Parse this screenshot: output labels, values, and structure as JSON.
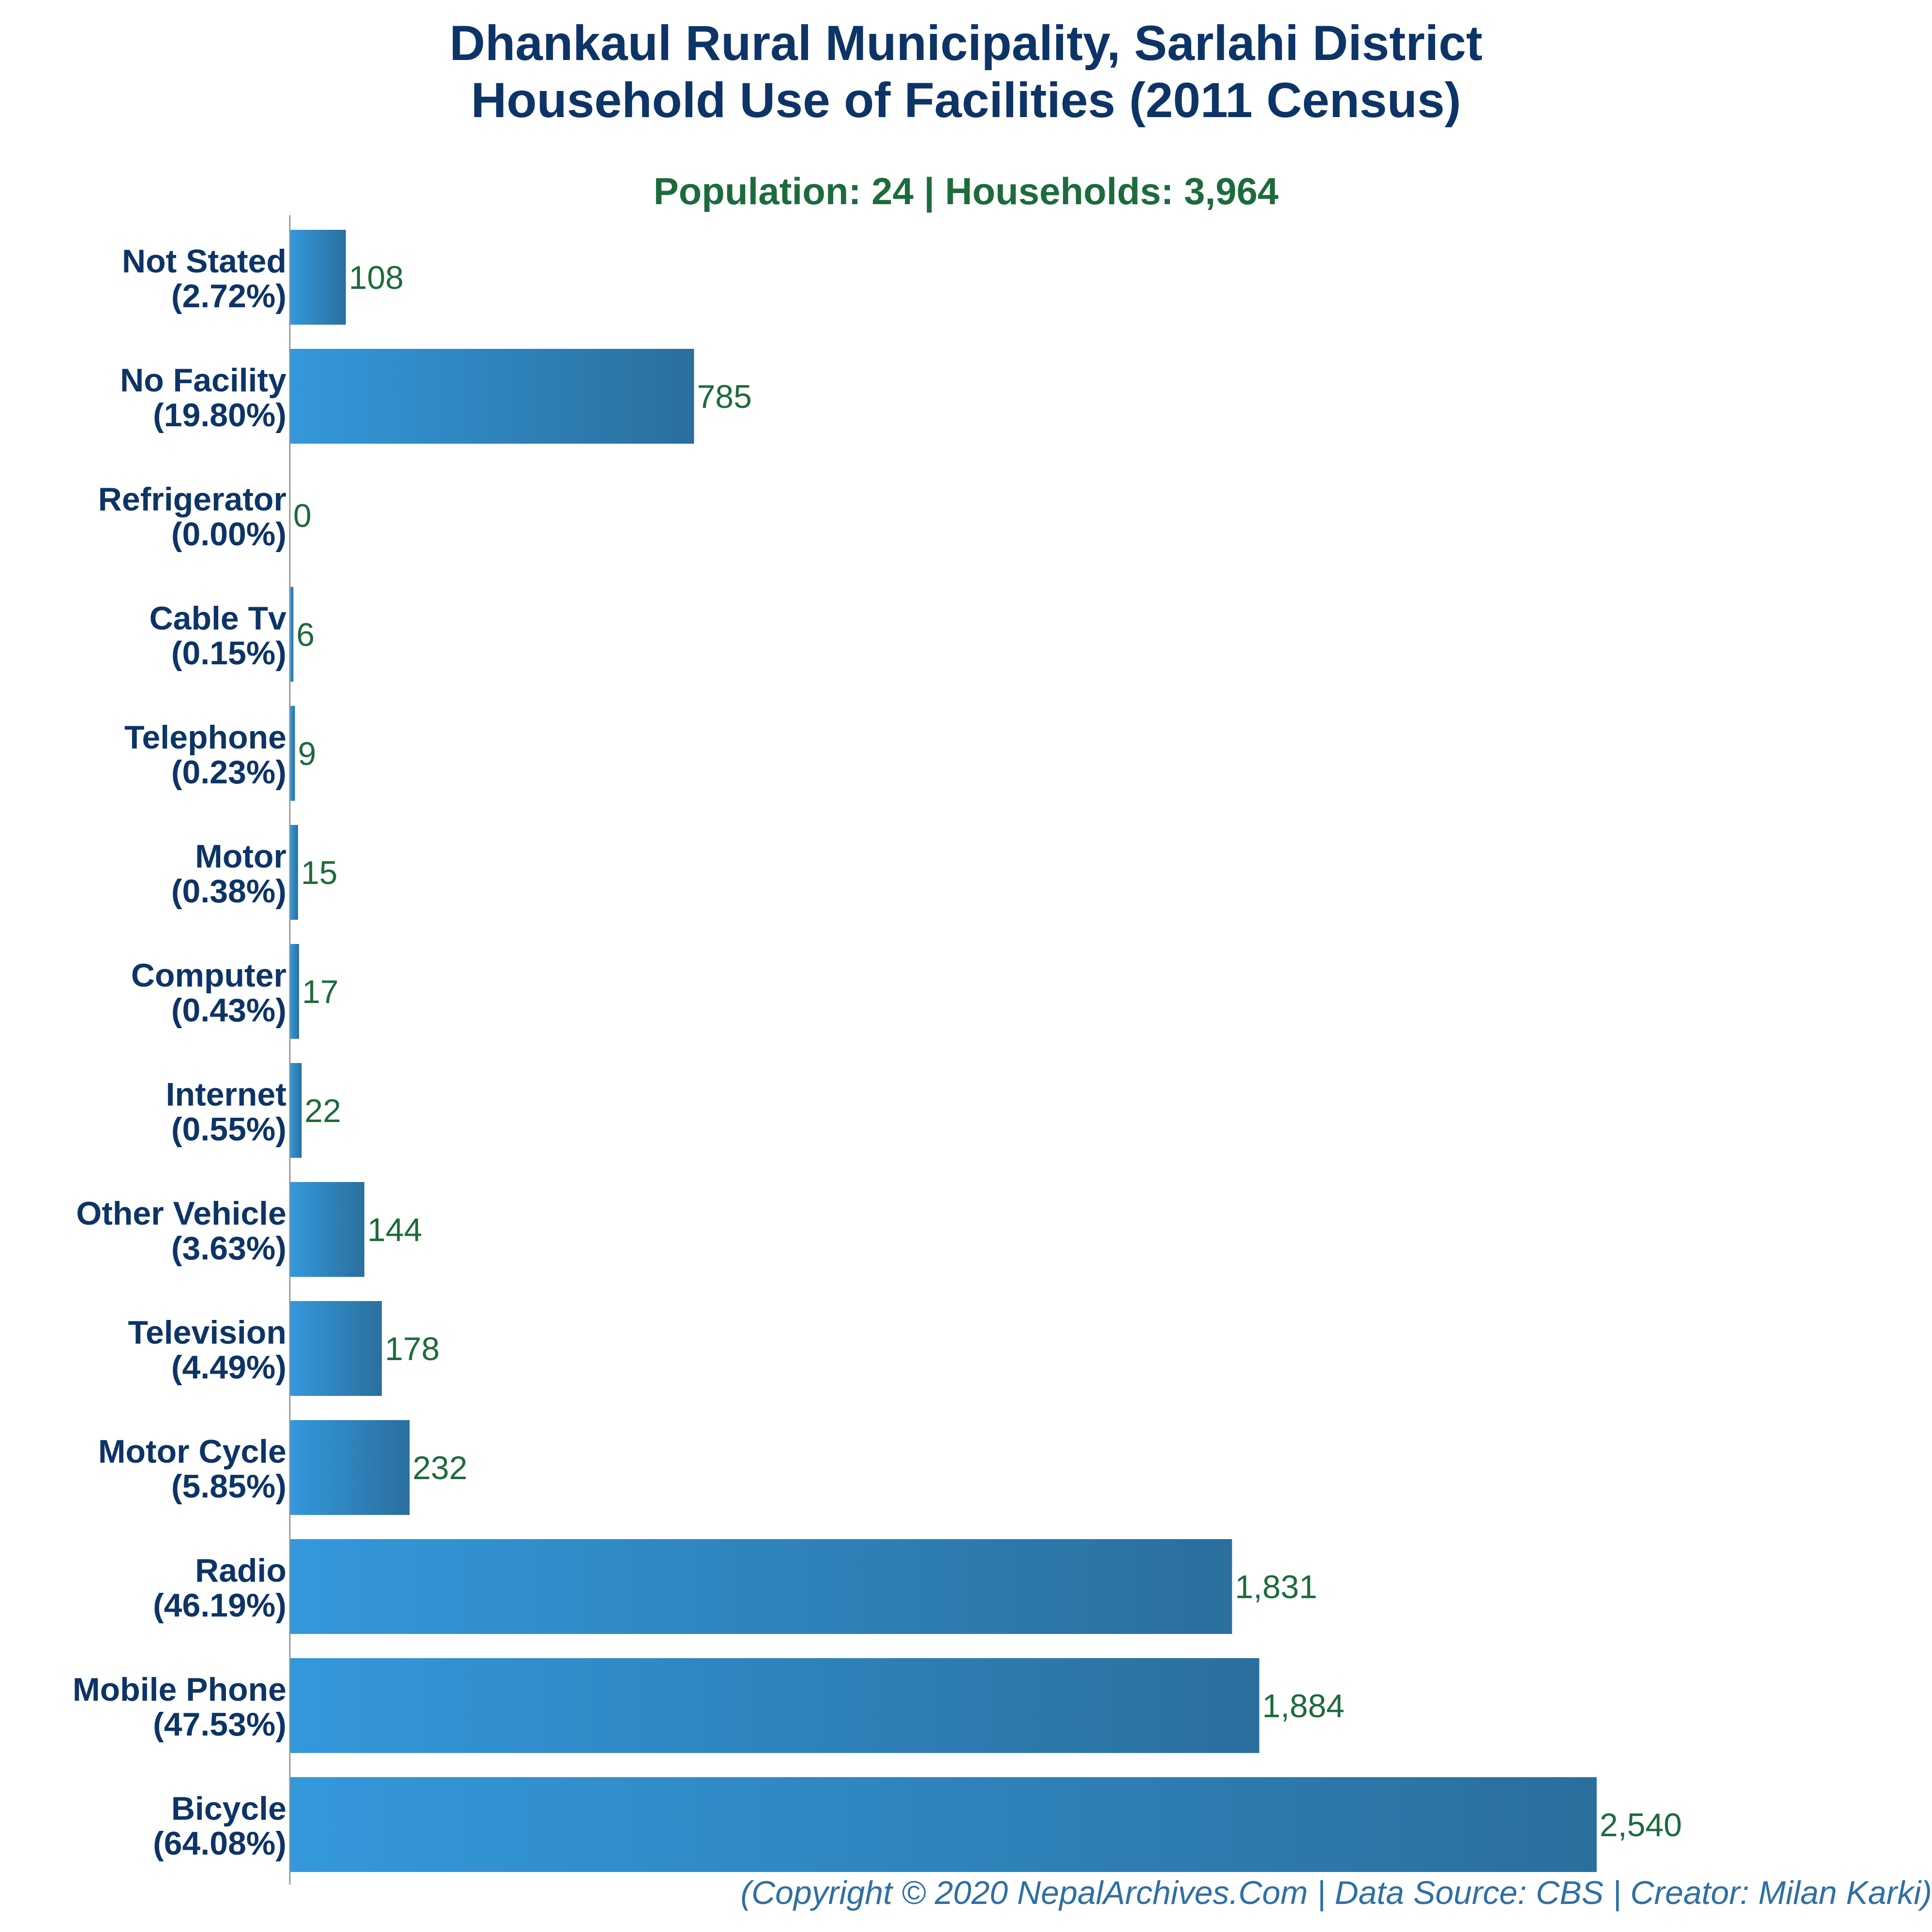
{
  "chart_data": {
    "type": "bar",
    "orientation": "horizontal",
    "title": [
      "Dhankaul Rural Municipality, Sarlahi District",
      "Household Use of Facilities (2011 Census)"
    ],
    "subtitle": "Population: 24 | Households: 3,964",
    "categories": [
      {
        "name": "Not Stated",
        "pct": "(2.72%)",
        "value": 108,
        "value_label": "108"
      },
      {
        "name": "No Facility",
        "pct": "(19.80%)",
        "value": 785,
        "value_label": "785"
      },
      {
        "name": "Refrigerator",
        "pct": "(0.00%)",
        "value": 0,
        "value_label": "0"
      },
      {
        "name": "Cable Tv",
        "pct": "(0.15%)",
        "value": 6,
        "value_label": "6"
      },
      {
        "name": "Telephone",
        "pct": "(0.23%)",
        "value": 9,
        "value_label": "9"
      },
      {
        "name": "Motor",
        "pct": "(0.38%)",
        "value": 15,
        "value_label": "15"
      },
      {
        "name": "Computer",
        "pct": "(0.43%)",
        "value": 17,
        "value_label": "17"
      },
      {
        "name": "Internet",
        "pct": "(0.55%)",
        "value": 22,
        "value_label": "22"
      },
      {
        "name": "Other Vehicle",
        "pct": "(3.63%)",
        "value": 144,
        "value_label": "144"
      },
      {
        "name": "Television",
        "pct": "(4.49%)",
        "value": 178,
        "value_label": "178"
      },
      {
        "name": "Motor Cycle",
        "pct": "(5.85%)",
        "value": 232,
        "value_label": "232"
      },
      {
        "name": "Radio",
        "pct": "(46.19%)",
        "value": 1831,
        "value_label": "1,831"
      },
      {
        "name": "Mobile Phone",
        "pct": "(47.53%)",
        "value": 1884,
        "value_label": "1,884"
      },
      {
        "name": "Bicycle",
        "pct": "(64.08%)",
        "value": 2540,
        "value_label": "2,540"
      }
    ],
    "xlim": [
      0,
      2540
    ],
    "grid": false,
    "legend": "none",
    "colors": {
      "bar_light": "#3498db",
      "bar_dark": "#2a6f9e",
      "category_text": "#0d3466",
      "value_text": "#1d6b3c",
      "subtitle": "#1d6b3c",
      "footer": "#2f6fa4"
    }
  },
  "footer": "(Copyright © 2020 NepalArchives.Com | Data Source: CBS | Creator: Milan Karki)"
}
